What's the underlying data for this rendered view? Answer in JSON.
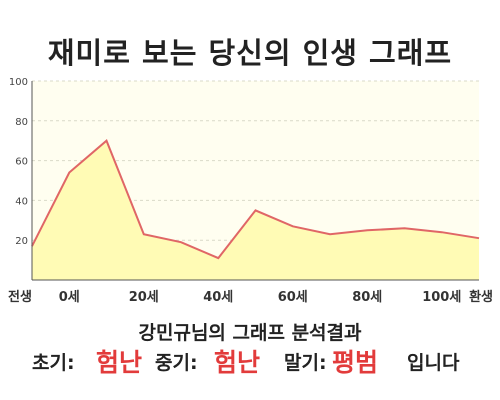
{
  "title": "재미로 보는 당신의 인생 그래프",
  "subtitle": "강민규님의 그래프 분석결과",
  "summary": {
    "early_label": "초기:",
    "early_value": "험난",
    "mid_label": "중기:",
    "mid_value": "험난",
    "late_label": "말기:",
    "late_value": "평범",
    "ending": "입니다"
  },
  "colors": {
    "line": "#e06666",
    "fill": "#fffbb5",
    "plot_bg": "#fffef0",
    "highlight": "#e23b3b"
  },
  "chart_data": {
    "type": "area",
    "x": [
      -10,
      0,
      10,
      20,
      30,
      40,
      50,
      60,
      70,
      80,
      90,
      100,
      110
    ],
    "values": [
      17,
      54,
      70,
      23,
      19,
      11,
      35,
      27,
      23,
      25,
      26,
      24,
      21
    ],
    "x_ticks": [
      {
        "x": -10,
        "label": "전생"
      },
      {
        "x": 0,
        "label": "0세"
      },
      {
        "x": 20,
        "label": "20세"
      },
      {
        "x": 40,
        "label": "40세"
      },
      {
        "x": 60,
        "label": "60세"
      },
      {
        "x": 80,
        "label": "80세"
      },
      {
        "x": 100,
        "label": "100세"
      },
      {
        "x": 120,
        "label": "환생"
      }
    ],
    "y_ticks": [
      20,
      40,
      60,
      80,
      100
    ],
    "ylim": [
      0,
      100
    ],
    "grid": true
  }
}
